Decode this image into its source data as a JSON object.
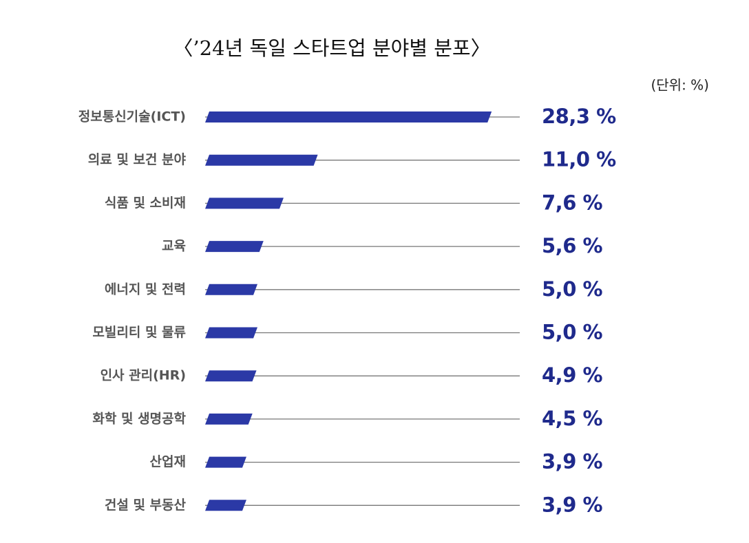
{
  "chart_data": {
    "type": "bar",
    "orientation": "horizontal",
    "title": "〈’24년 독일 스타트업 분야별 분포〉",
    "unit_label": "(단위:  %)",
    "categories": [
      "정보통신기술(ICT)",
      "의료 및 보건 분야",
      "식품 및 소비재",
      "교육",
      "에너지 및 전력",
      "모빌리티 및 물류",
      "인사 관리(HR)",
      "화학 및 생명공학",
      "산업재",
      "건설 및 부동산"
    ],
    "values": [
      28.3,
      11.0,
      7.6,
      5.6,
      5.0,
      5.0,
      4.9,
      4.5,
      3.9,
      3.9
    ],
    "value_labels": [
      "28,3 %",
      "11,0 %",
      "7,6 %",
      "5,6 %",
      "5,0 %",
      "5,0 %",
      "4,9 %",
      "4,5 %",
      "3,9 %",
      "3,9 %"
    ],
    "color": "#2b39a6"
  }
}
